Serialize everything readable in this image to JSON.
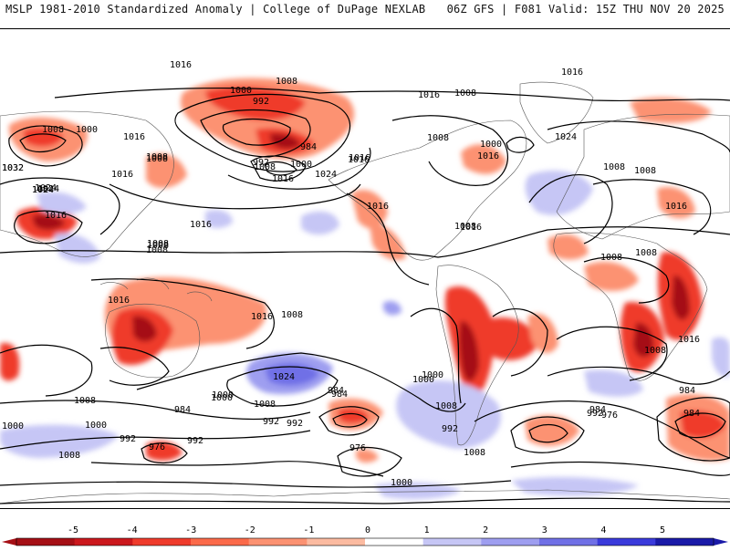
{
  "header": {
    "left_title": "MSLP 1981-2010 Standardized Anomaly | College of DuPage NEXLAB",
    "right_title": "06Z GFS | F081 Valid: 15Z THU NOV 20 2025"
  },
  "map": {
    "projection": "global cylindrical",
    "field": "MSLP standardized anomaly",
    "contour_units": "hPa",
    "isobar_labels": [
      "1016",
      "1016",
      "1008",
      "1000",
      "992",
      "1016",
      "1008",
      "1008",
      "1000",
      "1008",
      "1016",
      "984",
      "1008",
      "992",
      "1000",
      "1024",
      "1016",
      "1008",
      "1000",
      "1016",
      "1024",
      "1032",
      "1024",
      "1016",
      "1016",
      "1008",
      "1024",
      "1016",
      "1016",
      "1016",
      "1008",
      "1008",
      "1008",
      "1008",
      "1008",
      "1016",
      "1008",
      "1016",
      "1016",
      "1008",
      "1024",
      "1008",
      "1024",
      "1016",
      "1008",
      "1016",
      "1000",
      "1008",
      "992",
      "1000",
      "1008",
      "984",
      "1000",
      "992",
      "976",
      "984",
      "992",
      "1000",
      "1008",
      "992",
      "1000",
      "1008",
      "984",
      "976",
      "992",
      "1016",
      "1008",
      "984",
      "1008",
      "1000",
      "992",
      "984",
      "1000"
    ],
    "pressure_centers": [
      {
        "type": "high",
        "value": "1032"
      },
      {
        "type": "high",
        "value": "1024"
      },
      {
        "type": "low",
        "value": "976"
      },
      {
        "type": "low",
        "value": "984"
      }
    ]
  },
  "colorbar": {
    "ticks": [
      "-5",
      "-4",
      "-3",
      "-2",
      "-1",
      "0",
      "1",
      "2",
      "3",
      "4",
      "5"
    ],
    "colors": [
      "#a50f15",
      "#cb181d",
      "#ef3b2c",
      "#fb6a4a",
      "#fc9272",
      "#fcbba1",
      "#ffffff",
      "#c6c6f5",
      "#9e9ef0",
      "#7070e6",
      "#3a3adb",
      "#1a1aa8"
    ]
  }
}
